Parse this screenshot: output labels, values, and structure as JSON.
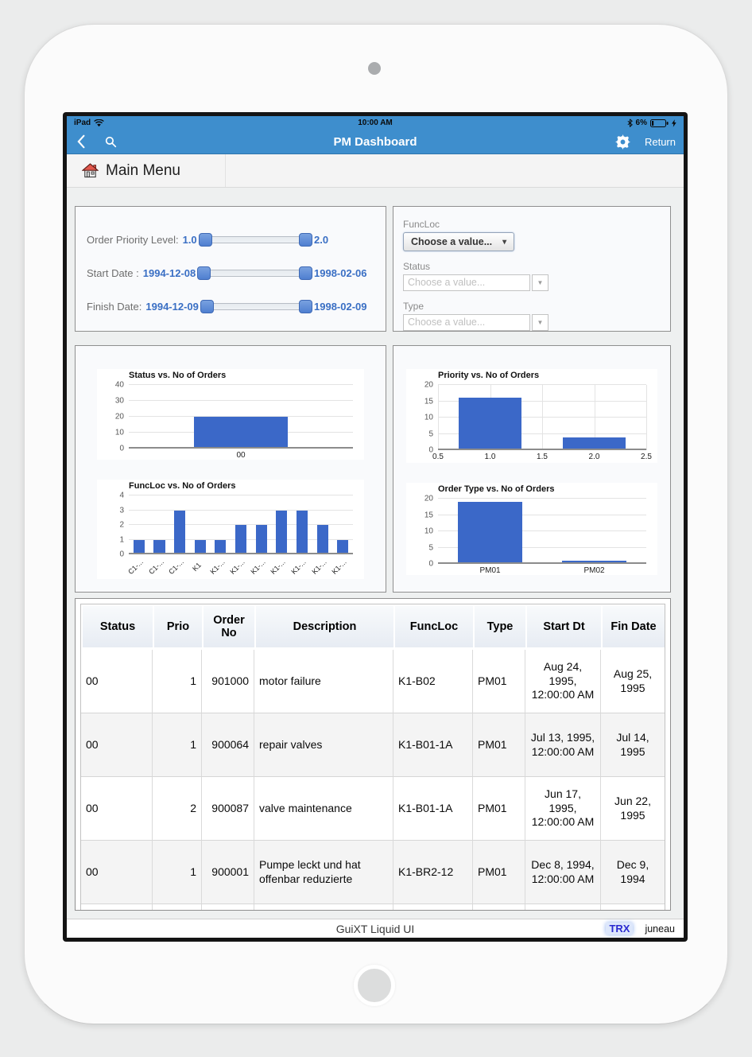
{
  "status_bar": {
    "carrier": "iPad",
    "time": "10:00 AM",
    "battery_pct": "6%"
  },
  "nav_bar": {
    "title": "PM Dashboard",
    "return_label": "Return"
  },
  "menu_bar": {
    "label": "Main Menu"
  },
  "filters": {
    "sliders": [
      {
        "label": "Order Priority Level:",
        "min": "1.0",
        "max": "2.0"
      },
      {
        "label": "Start Date :",
        "min": "1994-12-08",
        "max": "1998-02-06"
      },
      {
        "label": "Finish Date:",
        "min": "1994-12-09",
        "max": "1998-02-09"
      }
    ],
    "dropdowns": [
      {
        "label": "FuncLoc",
        "value": "Choose a value...",
        "enabled": true
      },
      {
        "label": "Status",
        "value": "Choose a value...",
        "enabled": false
      },
      {
        "label": "Type",
        "value": "Choose a value...",
        "enabled": false
      }
    ],
    "caret_glyph": "▾",
    "combo_arrow_glyph": "▼"
  },
  "chart_data": [
    {
      "type": "bar",
      "title": "Status vs. No of Orders",
      "categories": [
        "00"
      ],
      "values": [
        20
      ],
      "ylabel": "No of Orders",
      "ylim": [
        0,
        40
      ],
      "yticks": [
        0,
        10,
        20,
        30,
        40
      ],
      "grid": true,
      "legend": "none",
      "bar_color": "#3b68c8"
    },
    {
      "type": "bar",
      "title": "FuncLoc vs. No of Orders",
      "categories": [
        "C1-...",
        "C1-...",
        "C1-...",
        "K1",
        "K1-...",
        "K1-...",
        "K1-...",
        "K1-...",
        "K1-...",
        "K1-...",
        "K1-..."
      ],
      "values": [
        1,
        1,
        3,
        1,
        1,
        2,
        2,
        3,
        3,
        2,
        1
      ],
      "ylabel": "No of Orders",
      "ylim": [
        0,
        4
      ],
      "yticks": [
        0,
        1,
        2,
        3,
        4
      ],
      "grid": true,
      "legend": "none",
      "rotated_labels": true,
      "bar_color": "#3b68c8"
    },
    {
      "type": "histogram",
      "title": "Priority vs. No of Orders",
      "x_centers": [
        1.0,
        2.0
      ],
      "values": [
        16,
        4
      ],
      "bar_halfwidth": 0.3,
      "xlim": [
        0.5,
        2.5
      ],
      "xticks": [
        0.5,
        1.0,
        1.5,
        2.0,
        2.5
      ],
      "ylabel": "No of Orders",
      "ylim": [
        0,
        20
      ],
      "yticks": [
        0,
        5,
        10,
        15,
        20
      ],
      "grid": true,
      "legend": "none",
      "bar_color": "#3b68c8"
    },
    {
      "type": "bar",
      "title": "Order Type vs. No of Orders",
      "categories": [
        "PM01",
        "PM02"
      ],
      "values": [
        19,
        1
      ],
      "ylabel": "No of Orders",
      "ylim": [
        0,
        20
      ],
      "yticks": [
        0,
        5,
        10,
        15,
        20
      ],
      "grid": true,
      "legend": "none",
      "bar_color": "#3b68c8"
    }
  ],
  "table": {
    "columns": [
      "Status",
      "Prio",
      "Order No",
      "Description",
      "FuncLoc",
      "Type",
      "Start Dt",
      "Fin Date"
    ],
    "rows": [
      [
        "00",
        "1",
        "901000",
        "motor failure",
        "K1-B02",
        "PM01",
        "Aug 24, 1995, 12:00:00 AM",
        "Aug 25, 1995"
      ],
      [
        "00",
        "1",
        "900064",
        "repair valves",
        "K1-B01-1A",
        "PM01",
        "Jul 13, 1995, 12:00:00 AM",
        "Jul 14, 1995"
      ],
      [
        "00",
        "2",
        "900087",
        "valve maintenance",
        "K1-B01-1A",
        "PM01",
        "Jun 17, 1995, 12:00:00 AM",
        "Jun 22, 1995"
      ],
      [
        "00",
        "1",
        "900001",
        "Pumpe leckt und hat offenbar reduzierte",
        "K1-BR2-12",
        "PM01",
        "Dec 8, 1994, 12:00:00 AM",
        "Dec 9, 1994"
      ]
    ]
  },
  "footer": {
    "center": "GuiXT Liquid UI",
    "trx": "TRX",
    "user": "juneau"
  },
  "colors": {
    "nav_blue": "#3e8ecd",
    "chart_bar_blue": "#3b68c8",
    "value_blue": "#3a6fc4",
    "trx_blue": "#2a2ad0"
  }
}
